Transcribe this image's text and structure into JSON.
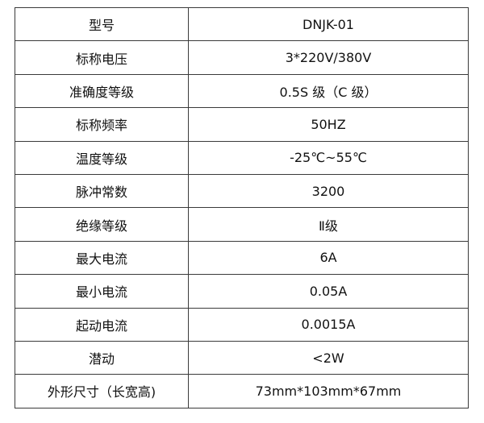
{
  "rows": [
    {
      "label": "型号",
      "value": "DNJK-01"
    },
    {
      "label": "标称电压",
      "value": "3*220V/380V"
    },
    {
      "label": "准确度等级",
      "value": "0.5S 级（C 级）"
    },
    {
      "label": "标称频率",
      "value": "50HZ"
    },
    {
      "label": "温度等级",
      "value": "-25℃~55℃"
    },
    {
      "label": "脉冲常数",
      "value": "3200"
    },
    {
      "label": "绝缘等级",
      "value": "Ⅱ级"
    },
    {
      "label": "最大电流",
      "value": "6A"
    },
    {
      "label": "最小电流",
      "value": "0.05A"
    },
    {
      "label": "起动电流",
      "value": "0.0015A"
    },
    {
      "label": "潜动",
      "value": "<2W"
    },
    {
      "label": "外形尺寸（长宽高)",
      "value": "73mm*103mm*67mm"
    }
  ]
}
